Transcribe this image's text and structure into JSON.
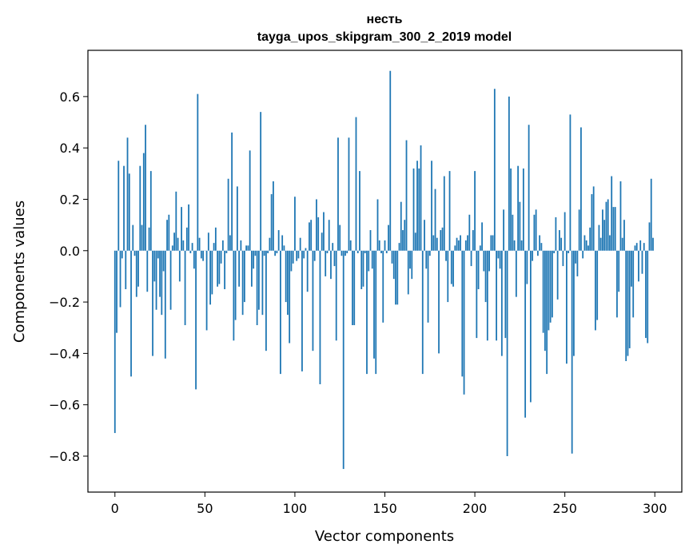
{
  "chart_data": {
    "type": "bar",
    "title": "несть",
    "subtitle": "tayga_upos_skipgram_300_2_2019 model",
    "xlabel": "Vector components",
    "ylabel": "Components values",
    "xlim": [
      -15,
      315
    ],
    "ylim": [
      -0.94,
      0.78
    ],
    "xticks": [
      0,
      50,
      100,
      150,
      200,
      250,
      300
    ],
    "xtick_labels": [
      "0",
      "50",
      "100",
      "150",
      "200",
      "250",
      "300"
    ],
    "yticks": [
      -0.8,
      -0.6,
      -0.4,
      -0.2,
      0.0,
      0.2,
      0.4,
      0.6
    ],
    "ytick_labels": [
      "−0.8",
      "−0.6",
      "−0.4",
      "−0.2",
      "0.0",
      "0.2",
      "0.4",
      "0.6"
    ],
    "grid": false,
    "bar_color": "#1f77b4",
    "values": [
      -0.71,
      -0.32,
      0.35,
      -0.22,
      -0.03,
      0.33,
      -0.15,
      0.44,
      0.3,
      -0.49,
      0.1,
      -0.02,
      -0.18,
      -0.14,
      0.33,
      0.1,
      0.38,
      0.49,
      -0.16,
      0.09,
      0.31,
      -0.41,
      -0.12,
      -0.23,
      -0.03,
      -0.18,
      -0.25,
      -0.08,
      -0.42,
      0.12,
      0.14,
      -0.23,
      0.02,
      0.07,
      0.23,
      0.05,
      -0.12,
      0.17,
      0.04,
      -0.29,
      0.09,
      0.18,
      -0.01,
      0.03,
      -0.07,
      -0.54,
      0.61,
      0.05,
      -0.03,
      -0.04,
      0.0,
      -0.31,
      0.07,
      -0.21,
      -0.17,
      0.03,
      0.09,
      -0.14,
      -0.13,
      -0.05,
      0.04,
      -0.15,
      -0.01,
      0.28,
      0.06,
      0.46,
      -0.35,
      -0.27,
      0.25,
      -0.14,
      0.04,
      -0.25,
      -0.2,
      0.02,
      0.02,
      0.39,
      -0.14,
      -0.07,
      -0.02,
      -0.29,
      -0.23,
      0.54,
      -0.25,
      -0.02,
      -0.39,
      -0.01,
      0.05,
      0.22,
      0.27,
      -0.02,
      -0.01,
      0.08,
      -0.48,
      0.06,
      0.02,
      -0.2,
      -0.25,
      -0.36,
      -0.08,
      -0.05,
      0.21,
      -0.04,
      -0.03,
      0.05,
      -0.47,
      -0.03,
      0.01,
      -0.16,
      0.11,
      0.12,
      -0.39,
      -0.04,
      0.2,
      0.13,
      -0.52,
      0.07,
      0.15,
      -0.1,
      -0.01,
      0.12,
      -0.11,
      0.03,
      -0.06,
      -0.35,
      0.44,
      0.1,
      -0.02,
      -0.85,
      -0.02,
      -0.01,
      0.44,
      0.04,
      -0.29,
      -0.29,
      0.52,
      -0.01,
      0.31,
      -0.15,
      -0.14,
      -0.01,
      -0.48,
      -0.08,
      0.08,
      -0.07,
      -0.42,
      -0.48,
      0.2,
      0.04,
      -0.01,
      -0.28,
      0.04,
      -0.01,
      0.1,
      0.7,
      -0.05,
      -0.11,
      -0.21,
      -0.21,
      0.03,
      0.19,
      0.08,
      0.12,
      0.43,
      -0.17,
      -0.07,
      -0.11,
      0.32,
      0.07,
      0.35,
      0.32,
      0.41,
      -0.48,
      0.12,
      -0.07,
      -0.28,
      -0.02,
      0.35,
      0.06,
      0.24,
      0.05,
      -0.4,
      0.08,
      0.09,
      0.29,
      -0.04,
      -0.2,
      0.31,
      -0.13,
      -0.14,
      0.02,
      0.05,
      0.04,
      0.06,
      -0.49,
      -0.56,
      0.04,
      0.06,
      0.14,
      -0.06,
      0.08,
      0.31,
      -0.34,
      -0.15,
      0.02,
      0.11,
      -0.08,
      -0.2,
      -0.35,
      -0.08,
      0.06,
      0.06,
      0.63,
      -0.35,
      -0.03,
      -0.07,
      -0.41,
      0.16,
      -0.34,
      -0.8,
      0.6,
      0.32,
      0.14,
      0.04,
      -0.18,
      0.33,
      0.19,
      0.04,
      0.32,
      -0.65,
      -0.13,
      0.49,
      -0.59,
      -0.04,
      0.14,
      0.16,
      -0.02,
      0.06,
      0.03,
      -0.32,
      -0.39,
      -0.48,
      -0.31,
      -0.28,
      -0.26,
      -0.01,
      0.13,
      -0.19,
      0.08,
      0.05,
      -0.06,
      0.15,
      -0.44,
      -0.01,
      0.53,
      -0.79,
      -0.41,
      -0.05,
      -0.1,
      0.16,
      0.48,
      -0.03,
      0.06,
      0.04,
      0.02,
      0.09,
      0.22,
      0.25,
      -0.31,
      -0.27,
      0.1,
      0.05,
      0.16,
      0.12,
      0.19,
      0.2,
      0.06,
      0.29,
      0.17,
      0.17,
      -0.26,
      -0.16,
      0.27,
      0.05,
      0.12,
      -0.43,
      -0.41,
      -0.38,
      -0.14,
      -0.26,
      0.02,
      0.03,
      -0.12,
      0.04,
      -0.09,
      0.03,
      -0.34,
      -0.36,
      0.11,
      0.28,
      0.05
    ]
  }
}
